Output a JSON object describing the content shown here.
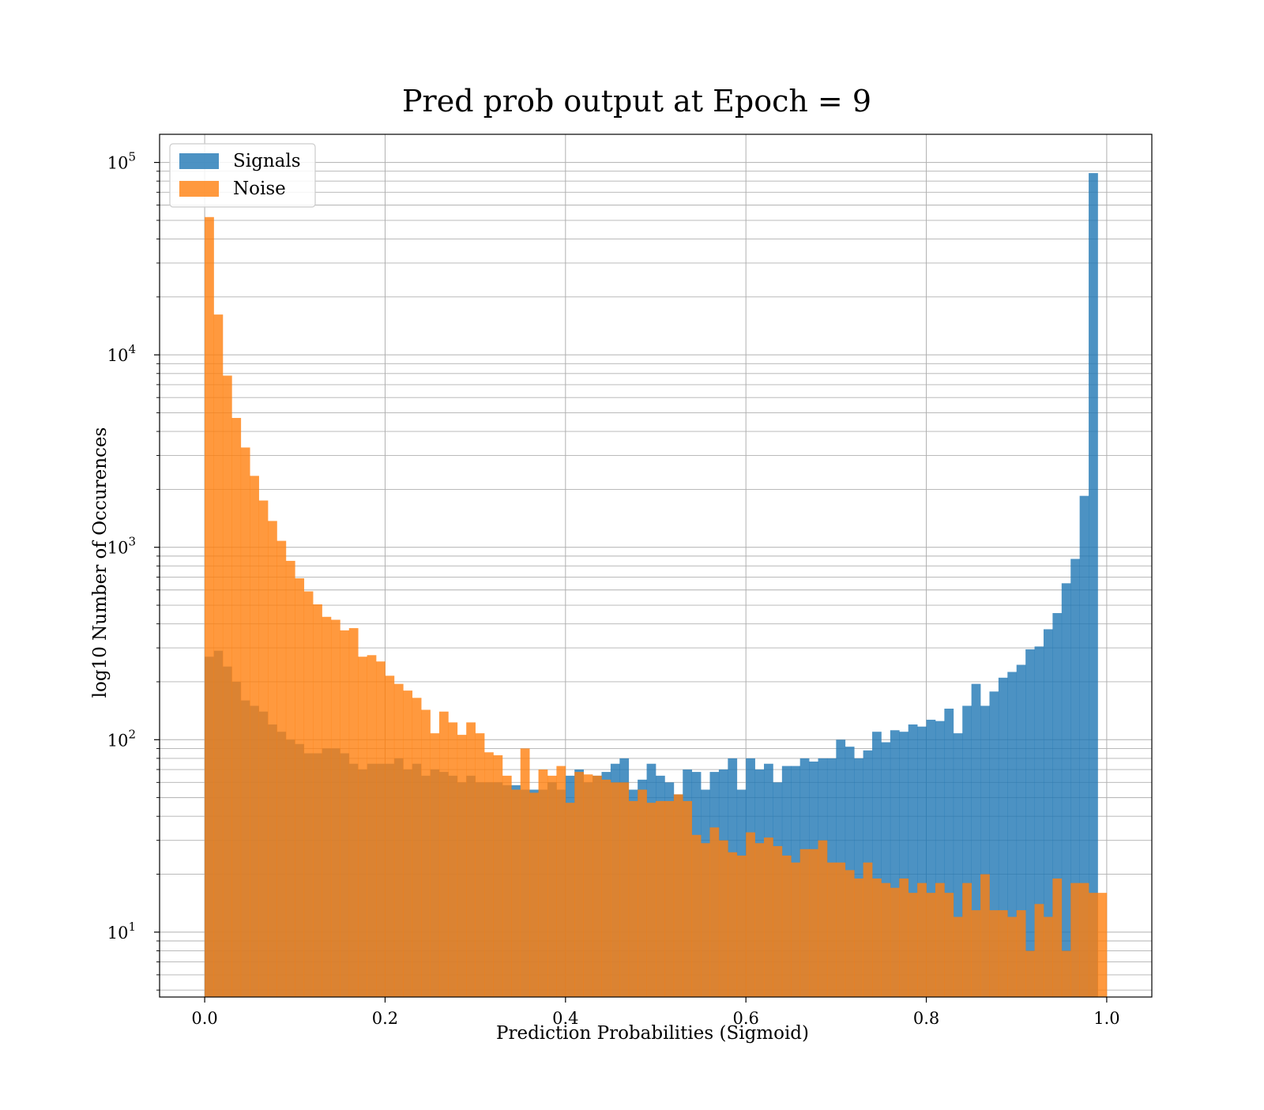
{
  "colors": {
    "signals": "#1f77b4",
    "noise": "#ff7f0e",
    "grid": "#b0b0b0",
    "background": "#ffffff"
  },
  "chart_data": {
    "type": "bar",
    "title": "Pred prob output at Epoch = 9",
    "xlabel": "Prediction Probabilities (Sigmoid)",
    "ylabel": "log10 Number of Occurences",
    "xlim": [
      -0.05,
      1.05
    ],
    "ylim": [
      4.6,
      140000
    ],
    "yscale": "log",
    "grid": true,
    "legend_position": "top-left",
    "bin_range": [
      0,
      1
    ],
    "bins": 100,
    "xticks": [
      "0.0",
      "0.2",
      "0.4",
      "0.6",
      "0.8",
      "1.0"
    ],
    "yticks": [
      {
        "base": "10",
        "exp": "1"
      },
      {
        "base": "10",
        "exp": "2"
      },
      {
        "base": "10",
        "exp": "3"
      },
      {
        "base": "10",
        "exp": "4"
      },
      {
        "base": "10",
        "exp": "5"
      }
    ],
    "series": [
      {
        "name": "Signals",
        "alpha": 0.8,
        "values": [
          270,
          290,
          240,
          200,
          160,
          150,
          140,
          120,
          110,
          100,
          95,
          85,
          85,
          90,
          90,
          85,
          75,
          70,
          75,
          75,
          75,
          80,
          70,
          75,
          65,
          70,
          68,
          65,
          60,
          65,
          60,
          60,
          60,
          58,
          58,
          55,
          55,
          55,
          60,
          55,
          65,
          70,
          60,
          65,
          68,
          75,
          80,
          55,
          62,
          75,
          65,
          60,
          52,
          70,
          68,
          55,
          68,
          70,
          80,
          55,
          80,
          70,
          75,
          60,
          73,
          73,
          80,
          77,
          80,
          80,
          100,
          92,
          80,
          88,
          110,
          97,
          112,
          110,
          120,
          117,
          127,
          125,
          145,
          108,
          150,
          195,
          150,
          178,
          210,
          225,
          245,
          295,
          305,
          375,
          455,
          650,
          870,
          1850,
          88000,
          0
        ]
      },
      {
        "name": "Noise",
        "alpha": 0.8,
        "values": [
          52000,
          16200,
          7800,
          4700,
          3300,
          2350,
          1750,
          1370,
          1080,
          850,
          690,
          590,
          505,
          435,
          420,
          370,
          380,
          270,
          275,
          255,
          215,
          195,
          180,
          165,
          143,
          108,
          140,
          123,
          106,
          123,
          108,
          86,
          83,
          65,
          55,
          90,
          53,
          70,
          65,
          73,
          47,
          68,
          66,
          65,
          62,
          60,
          60,
          48,
          55,
          47,
          48,
          48,
          52,
          48,
          32,
          29,
          35,
          30,
          26,
          25,
          33,
          29,
          31,
          28,
          25,
          23,
          27,
          27,
          30,
          23,
          23,
          21,
          19,
          23,
          19,
          18,
          17,
          19,
          16,
          18,
          16,
          18,
          16,
          12,
          18,
          13,
          20,
          13,
          13,
          12,
          13,
          8,
          14,
          12,
          19,
          8,
          18,
          18,
          16,
          16
        ]
      }
    ]
  }
}
